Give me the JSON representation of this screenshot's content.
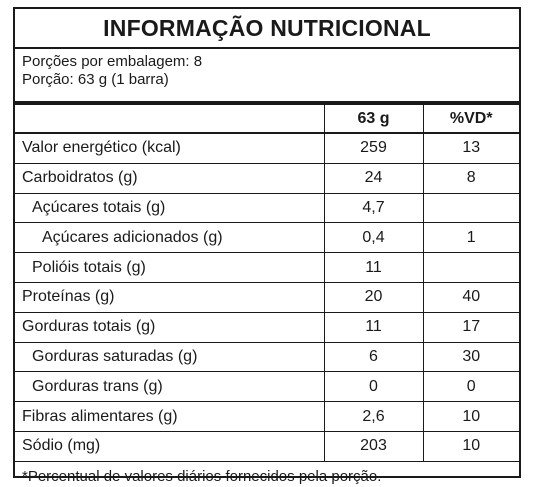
{
  "label": {
    "title": "INFORMAÇÃO NUTRICIONAL",
    "servings_per_package": "Porções por embalagem: 8",
    "serving_size": "Porção: 63 g (1 barra)",
    "columns": {
      "amount": "63 g",
      "dv": "%VD*"
    },
    "rows": [
      {
        "name": "Valor energético (kcal)",
        "amount": "259",
        "dv": "13"
      },
      {
        "name": "Carboidratos (g)",
        "amount": "24",
        "dv": "8"
      },
      {
        "name": "Açúcares totais (g)",
        "amount": "4,7",
        "dv": ""
      },
      {
        "name": "Açúcares adicionados (g)",
        "amount": "0,4",
        "dv": "1"
      },
      {
        "name": "Polióis totais (g)",
        "amount": "11",
        "dv": ""
      },
      {
        "name": "Proteínas (g)",
        "amount": "20",
        "dv": "40"
      },
      {
        "name": "Gorduras totais (g)",
        "amount": "11",
        "dv": "17"
      },
      {
        "name": "Gorduras saturadas (g)",
        "amount": "6",
        "dv": "30"
      },
      {
        "name": "Gorduras trans (g)",
        "amount": "0",
        "dv": "0"
      },
      {
        "name": "Fibras alimentares (g)",
        "amount": "2,6",
        "dv": "10"
      },
      {
        "name": "Sódio (mg)",
        "amount": "203",
        "dv": "10"
      }
    ],
    "footnote": "*Percentual de valores diários fornecidos pela porção."
  }
}
